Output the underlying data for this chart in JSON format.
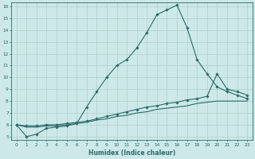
{
  "xlabel": "Humidex (Indice chaleur)",
  "xlim": [
    -0.5,
    23.5
  ],
  "ylim": [
    4.7,
    16.3
  ],
  "xticks": [
    0,
    1,
    2,
    3,
    4,
    5,
    6,
    7,
    8,
    9,
    10,
    11,
    12,
    13,
    14,
    15,
    16,
    17,
    18,
    19,
    20,
    21,
    22,
    23
  ],
  "yticks": [
    5,
    6,
    7,
    8,
    9,
    10,
    11,
    12,
    13,
    14,
    15,
    16
  ],
  "line_color": "#2a6b65",
  "bg_color": "#cce8e8",
  "grid_color": "#aed0cc",
  "line1_x": [
    0,
    1,
    2,
    3,
    4,
    5,
    6,
    7,
    8,
    9,
    10,
    11,
    12,
    13,
    14,
    15,
    16,
    17,
    18,
    19,
    20,
    21,
    22,
    23
  ],
  "line1_y": [
    6.0,
    5.0,
    5.2,
    5.7,
    5.8,
    5.9,
    6.1,
    7.5,
    8.8,
    10.0,
    11.0,
    11.5,
    12.5,
    13.8,
    15.3,
    15.7,
    16.1,
    14.2,
    11.5,
    10.3,
    9.2,
    8.8,
    8.5,
    8.2
  ],
  "line2_x": [
    0,
    1,
    2,
    3,
    4,
    5,
    6,
    7,
    8,
    9,
    10,
    11,
    12,
    13,
    14,
    15,
    16,
    17,
    18,
    19,
    20,
    21,
    22,
    23
  ],
  "line2_y": [
    6.0,
    5.9,
    5.9,
    6.0,
    6.0,
    6.1,
    6.2,
    6.3,
    6.5,
    6.7,
    6.9,
    7.1,
    7.3,
    7.5,
    7.6,
    7.8,
    7.9,
    8.1,
    8.2,
    8.4,
    10.3,
    9.0,
    8.8,
    8.5
  ],
  "line3_x": [
    0,
    1,
    2,
    3,
    4,
    5,
    6,
    7,
    8,
    9,
    10,
    11,
    12,
    13,
    14,
    15,
    16,
    17,
    18,
    19,
    20,
    21,
    22,
    23
  ],
  "line3_y": [
    6.0,
    5.8,
    5.8,
    5.9,
    5.9,
    6.0,
    6.1,
    6.2,
    6.4,
    6.5,
    6.7,
    6.8,
    7.0,
    7.1,
    7.3,
    7.4,
    7.5,
    7.6,
    7.8,
    7.9,
    8.0,
    8.0,
    8.0,
    8.0
  ]
}
